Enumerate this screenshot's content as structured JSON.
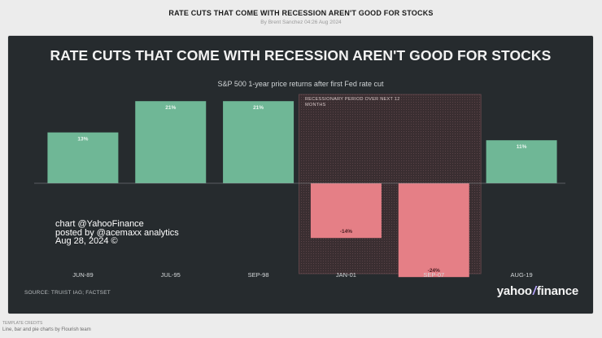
{
  "header": {
    "page_title": "RATE CUTS THAT COME WITH RECESSION AREN'T GOOD FOR STOCKS",
    "byline": "By Brent Sanchez 04:26 Aug 2024"
  },
  "chart_data": {
    "type": "bar",
    "title": "RATE CUTS THAT COME WITH RECESSION AREN'T GOOD FOR STOCKS",
    "subtitle": "S&P 500 1-year price returns after first Fed rate cut",
    "categories": [
      "JUN-89",
      "JUL-95",
      "SEP-98",
      "JAN-01",
      "SEP-07",
      "AUG-19"
    ],
    "values": [
      13,
      21,
      21,
      -14,
      -24,
      11
    ],
    "data_labels": [
      "13%",
      "21%",
      "21%",
      "-14%",
      "-24%",
      "11%"
    ],
    "ylim": [
      -25,
      22
    ],
    "xlabel": "",
    "ylabel": "",
    "recession_annotation": {
      "text": "RECESSIONARY PERIOD OVER NEXT 12 MONTHS",
      "categories": [
        "JAN-01",
        "SEP-07"
      ]
    },
    "colors": {
      "positive": "#6fb796",
      "negative": "#e57f86",
      "background": "#262b2e",
      "recession_shade": "#3a2e31"
    }
  },
  "watermark": {
    "line1": "chart @YahooFinance",
    "line2": "posted by @acemaxx analytics",
    "line3": "Aug 28, 2024 ©"
  },
  "source": "SOURCE: TRUIST IAG; FACTSET",
  "brand": {
    "part1": "yahoo",
    "slash": "/",
    "part2": "finance"
  },
  "footer": {
    "credits": "TEMPLATE CREDITS",
    "made_with": "Line, bar and pie charts by Flourish team"
  }
}
